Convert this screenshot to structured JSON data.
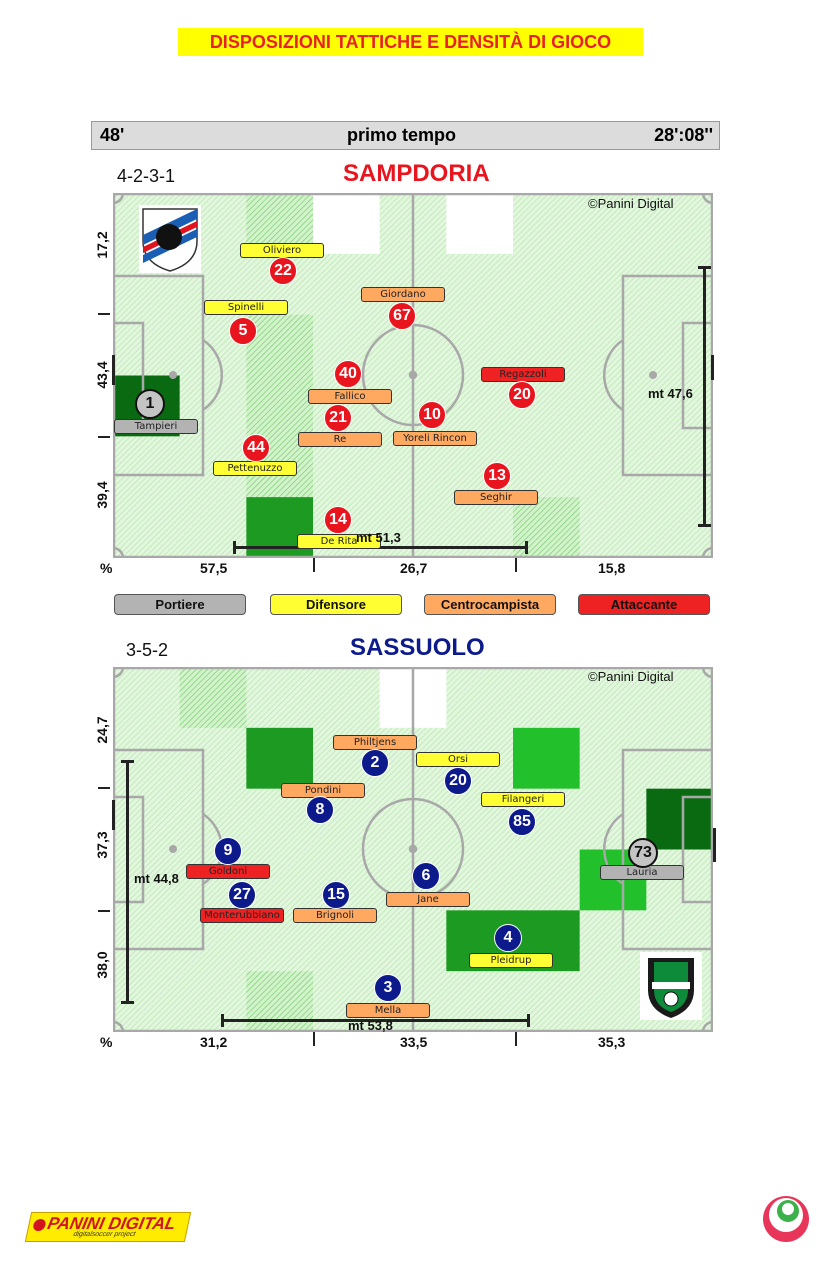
{
  "banner": {
    "title": "DISPOSIZIONI TATTICHE E DENSITÀ DI GIOCO"
  },
  "header": {
    "minute": "48'",
    "period": "primo tempo",
    "possession_time": "28':08''"
  },
  "colors": {
    "portiere": "#b3b3b3",
    "difensore": "#ffff33",
    "centrocampista": "#ffa860",
    "attaccante": "#ee2222",
    "sampdoria": "#e8141e",
    "sassuolo": "#0c1a8c"
  },
  "legend": [
    {
      "role": "portiere",
      "label": "Portiere"
    },
    {
      "role": "difensore",
      "label": "Difensore"
    },
    {
      "role": "centrocampista",
      "label": "Centrocampista"
    },
    {
      "role": "attaccante",
      "label": "Attaccante"
    }
  ],
  "teams": [
    {
      "name": "SAMPDORIA",
      "formation": "4-2-3-1",
      "copyright": "©Panini Digital",
      "logo": "sampdoria-crest",
      "side_pct": [
        "17,2",
        "43,4",
        "39,4"
      ],
      "bottom_pct_symbol": "%",
      "bottom_pct": [
        "57,5",
        "26,7",
        "15,8"
      ],
      "width_mt": "mt 47,6",
      "length_mt": "mt 51,3",
      "density_levels": [
        [
          1,
          1,
          2,
          0,
          1,
          0,
          1,
          1,
          1
        ],
        [
          1,
          1,
          1,
          1,
          1,
          1,
          1,
          1,
          1
        ],
        [
          1,
          1,
          2,
          1,
          1,
          1,
          1,
          1,
          1
        ],
        [
          4,
          1,
          2,
          1,
          1,
          1,
          1,
          1,
          1
        ],
        [
          1,
          1,
          2,
          1,
          1,
          1,
          1,
          1,
          1
        ],
        [
          1,
          1,
          3,
          1,
          1,
          1,
          2,
          1,
          1
        ]
      ],
      "players": [
        {
          "number": "1",
          "name": "Tampieri",
          "role": "portiere"
        },
        {
          "number": "22",
          "name": "Oliviero",
          "role": "difensore"
        },
        {
          "number": "5",
          "name": "Spinelli",
          "role": "difensore"
        },
        {
          "number": "67",
          "name": "Giordano",
          "role": "centrocampista"
        },
        {
          "number": "40",
          "name": "Fallico",
          "role": "centrocampista"
        },
        {
          "number": "21",
          "name": "Re",
          "role": "centrocampista"
        },
        {
          "number": "10",
          "name": "Yoreli Rincon",
          "role": "centrocampista"
        },
        {
          "number": "20",
          "name": "Regazzoli",
          "role": "attaccante"
        },
        {
          "number": "44",
          "name": "Pettenuzzo",
          "role": "difensore"
        },
        {
          "number": "13",
          "name": "Seghir",
          "role": "centrocampista"
        },
        {
          "number": "14",
          "name": "De Rita",
          "role": "difensore"
        }
      ]
    },
    {
      "name": "SASSUOLO",
      "formation": "3-5-2",
      "copyright": "©Panini Digital",
      "logo": "sassuolo-crest",
      "side_pct": [
        "24,7",
        "37,3",
        "38,0"
      ],
      "bottom_pct_symbol": "%",
      "bottom_pct": [
        "31,2",
        "33,5",
        "35,3"
      ],
      "width_mt": "mt 44,8",
      "length_mt": "mt 53,8",
      "density_levels": [
        [
          1,
          2,
          1,
          1,
          0,
          1,
          1,
          1,
          1
        ],
        [
          1,
          1,
          3,
          1,
          1,
          1,
          5,
          1,
          1
        ],
        [
          1,
          1,
          1,
          1,
          1,
          1,
          1,
          1,
          4
        ],
        [
          1,
          1,
          1,
          1,
          1,
          1,
          1,
          5,
          1
        ],
        [
          1,
          1,
          1,
          1,
          1,
          3,
          3,
          1,
          1
        ],
        [
          1,
          1,
          2,
          1,
          1,
          1,
          1,
          1,
          1
        ]
      ],
      "players": [
        {
          "number": "2",
          "name": "Philtjens",
          "role": "centrocampista"
        },
        {
          "number": "20",
          "name": "Orsi",
          "role": "difensore"
        },
        {
          "number": "8",
          "name": "Pondini",
          "role": "centrocampista"
        },
        {
          "number": "85",
          "name": "Filangeri",
          "role": "difensore"
        },
        {
          "number": "9",
          "name": "Goldoni",
          "role": "attaccante"
        },
        {
          "number": "27",
          "name": "Monterubbiano",
          "role": "attaccante"
        },
        {
          "number": "15",
          "name": "Brignoli",
          "role": "centrocampista"
        },
        {
          "number": "6",
          "name": "Jane",
          "role": "centrocampista"
        },
        {
          "number": "4",
          "name": "Pleidrup",
          "role": "difensore"
        },
        {
          "number": "3",
          "name": "Mella",
          "role": "centrocampista"
        },
        {
          "number": "73",
          "name": "Lauria",
          "role": "portiere"
        }
      ]
    }
  ],
  "footer": {
    "brand": "PANINI DIGITAL",
    "tagline": "digitalsoccer project",
    "logo_right": "round-brand-logo"
  }
}
